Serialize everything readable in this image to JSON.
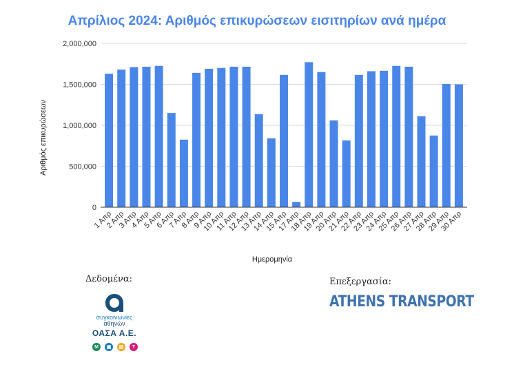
{
  "chart_data": {
    "type": "bar",
    "title": "Απρίλιος 2024: Αριθμός επικυρώσεων εισιτηρίων ανά ημέρα",
    "xlabel": "Ημερομηνία",
    "ylabel": "Αριθμός επικυρώσεων",
    "ylim": [
      0,
      2000000
    ],
    "yticks": [
      0,
      500000,
      1000000,
      1500000,
      2000000
    ],
    "ytick_labels": [
      "0",
      "500,000",
      "1,000,000",
      "1,500,000",
      "2,000,000"
    ],
    "grid": true,
    "bar_color": "#4a86e8",
    "categories": [
      "1 Απρ",
      "2 Απρ",
      "3 Απρ",
      "4 Απρ",
      "5 Απρ",
      "6 Απρ",
      "7 Απρ",
      "8 Απρ",
      "9 Απρ",
      "10 Απρ",
      "11 Απρ",
      "12 Απρ",
      "13 Απρ",
      "14 Απρ",
      "15 Απρ",
      "17 Απρ",
      "18 Απρ",
      "19 Απρ",
      "20 Απρ",
      "21 Απρ",
      "22 Απρ",
      "23 Απρ",
      "24 Απρ",
      "25 Απρ",
      "26 Απρ",
      "27 Απρ",
      "28 Απρ",
      "29 Απρ",
      "30 Απρ"
    ],
    "values": [
      1630000,
      1680000,
      1710000,
      1715000,
      1725000,
      1150000,
      825000,
      1640000,
      1690000,
      1700000,
      1715000,
      1715000,
      1135000,
      840000,
      1615000,
      65000,
      1770000,
      1650000,
      1060000,
      815000,
      1615000,
      1660000,
      1665000,
      1725000,
      1715000,
      1110000,
      875000,
      1505000,
      1500000
    ]
  },
  "credits": {
    "data_label": "Δεδομένα:",
    "processing_label": "Επεξεργασία:",
    "oasa_line1": "συγκοινωνίες",
    "oasa_line2": "αθηνών",
    "oasa_name": "ΟΑΣΑ Α.Ε.",
    "athens_transport": "ATHENS TRANSPORT",
    "oasa_colors": [
      "#1a8a5a",
      "#1a7bbf",
      "#f5a623",
      "#d81b7a"
    ],
    "brand_color": "#1a7bbf"
  }
}
